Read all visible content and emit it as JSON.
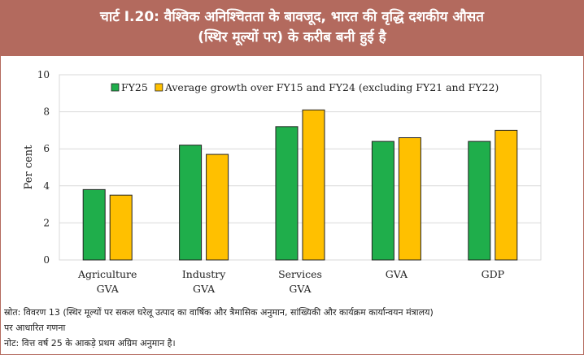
{
  "header": {
    "title_line1": "चार्ट I.20: वैश्विक अनिश्चितता के बावजूद, भारत की वृद्धि दशकीय औसत",
    "title_line2": "(स्थिर मूल्यों पर) के करीब बनी हुई है"
  },
  "colors": {
    "title_band": "#b36a5e",
    "series_fy25": "#1fae4b",
    "series_avg": "#ffc000"
  },
  "chart_data": {
    "type": "bar",
    "categories": [
      [
        "Agriculture",
        "GVA"
      ],
      [
        "Industry",
        "GVA"
      ],
      [
        "Services",
        "GVA"
      ],
      [
        "GVA"
      ],
      [
        "GDP"
      ]
    ],
    "series": [
      {
        "name": "FY25",
        "values": [
          3.8,
          6.2,
          7.2,
          6.4,
          6.4
        ],
        "color": "#1fae4b"
      },
      {
        "name": "Average growth over FY15 and FY24 (excluding FY21 and FY22)",
        "values": [
          3.5,
          5.7,
          8.1,
          6.6,
          7.0
        ],
        "color": "#ffc000"
      }
    ],
    "ylabel": "Per cent",
    "xlabel": "",
    "ylim": [
      0,
      10
    ],
    "yticks": [
      0,
      2,
      4,
      6,
      8,
      10
    ],
    "grid": true,
    "legend": "top-center"
  },
  "notes": {
    "source_line1": "स्रोत: विवरण 13 (स्थिर मूल्यों पर सकल घरेलू उत्पाद का वार्षिक और त्रैमासिक अनुमान, सांख्यिकी और कार्यक्रम कार्यान्वयन मंत्रालय)",
    "source_line2": "पर आधारित गणना",
    "note": "नोट: वित्त वर्ष 25 के आकड़े प्रथम अग्रिम अनुमान है।"
  }
}
